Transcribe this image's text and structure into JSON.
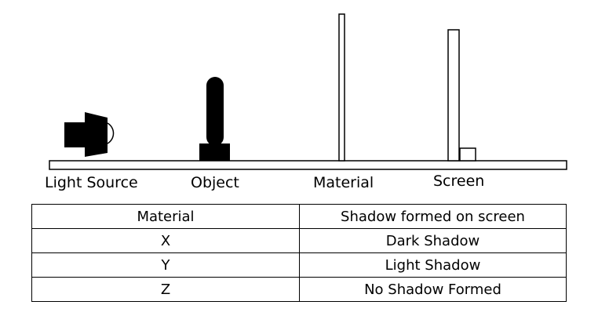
{
  "labels": {
    "light_source": "Light Source",
    "object": "Object",
    "material": "Material",
    "screen": "Screen"
  },
  "table": {
    "headers": [
      "Material",
      "Shadow formed on screen"
    ],
    "rows": [
      [
        "X",
        "Dark Shadow"
      ],
      [
        "Y",
        "Light Shadow"
      ],
      [
        "Z",
        "No Shadow Formed"
      ]
    ]
  },
  "colors": {
    "ink": "#000000",
    "paper": "#ffffff"
  }
}
